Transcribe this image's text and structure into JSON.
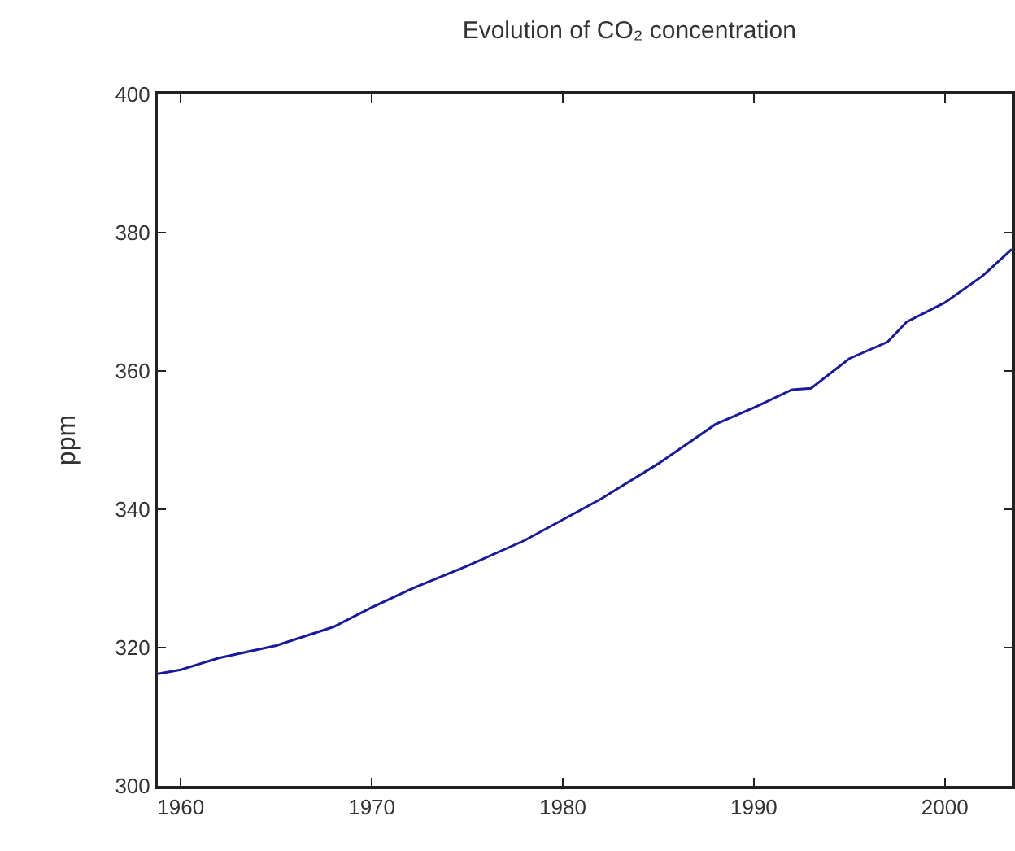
{
  "chart_data": {
    "type": "line",
    "title": "Evolution of CO₂ concentration",
    "ylabel": "ppm",
    "x": [
      1958.8,
      1960,
      1962,
      1965,
      1968,
      1970,
      1972,
      1975,
      1978,
      1980,
      1982,
      1985,
      1988,
      1990,
      1992,
      1993,
      1995,
      1997,
      1998,
      2000,
      2002,
      2003.5
    ],
    "series": [
      {
        "color": "#1a1aa0",
        "values": [
          316.2,
          316.8,
          318.5,
          320.3,
          323,
          325.8,
          328.4,
          331.8,
          335.5,
          338.5,
          341.5,
          346.6,
          352.3,
          354.7,
          357.3,
          357.5,
          361.8,
          364.2,
          367.1,
          369.9,
          373.8,
          377.6
        ]
      }
    ],
    "xlim": [
      1958.8,
      2003.5
    ],
    "xticks": [
      1960,
      1970,
      1980,
      1990,
      2000
    ],
    "ylim": [
      300,
      400
    ],
    "yticks": [
      300,
      320,
      340,
      360,
      380,
      400
    ],
    "grid": false,
    "marker": "none",
    "line_style": "solid"
  }
}
